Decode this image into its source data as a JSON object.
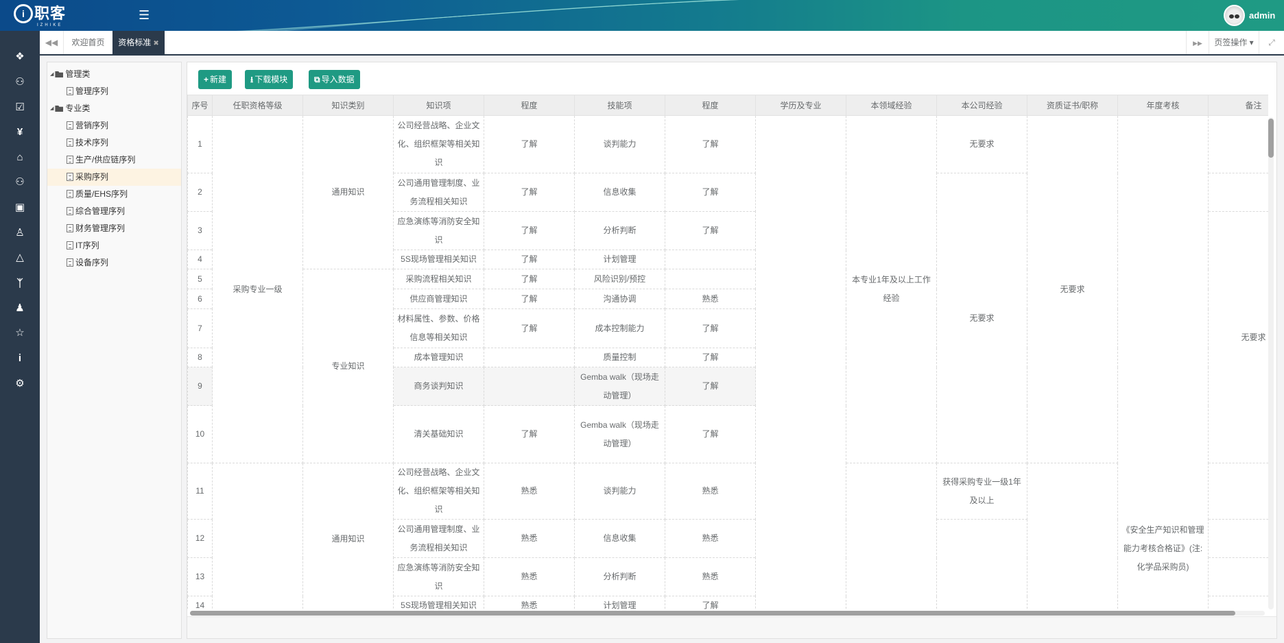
{
  "header": {
    "logo_text": "职客",
    "logo_sub": "IZHIKE",
    "menu_icon": "hamburger-icon",
    "user_name": "admin"
  },
  "sidebar": {
    "icons": [
      "cubes-icon",
      "users-icon",
      "check-square-icon",
      "yen-icon",
      "bank-icon",
      "group-icon",
      "briefcase-icon",
      "user-pin-icon",
      "graduation-cap-icon",
      "person-icon",
      "user-icon",
      "trophy-icon",
      "info-icon",
      "cogs-icon"
    ]
  },
  "tabs": {
    "items": [
      {
        "label": "欢迎首页",
        "active": false
      },
      {
        "label": "资格标准",
        "active": true,
        "close": "✖"
      }
    ],
    "page_ops": "页签操作 ▾"
  },
  "tree": {
    "items": [
      {
        "label": "管理类",
        "type": "group"
      },
      {
        "label": "管理序列",
        "type": "leaf"
      },
      {
        "label": "专业类",
        "type": "group"
      },
      {
        "label": "营销序列",
        "type": "leaf"
      },
      {
        "label": "技术序列",
        "type": "leaf"
      },
      {
        "label": "生产/供应链序列",
        "type": "leaf"
      },
      {
        "label": "采购序列",
        "type": "leaf",
        "selected": true
      },
      {
        "label": "质量/EHS序列",
        "type": "leaf"
      },
      {
        "label": "综合管理序列",
        "type": "leaf"
      },
      {
        "label": "财务管理序列",
        "type": "leaf"
      },
      {
        "label": "IT序列",
        "type": "leaf"
      },
      {
        "label": "设备序列",
        "type": "leaf"
      }
    ]
  },
  "toolbar": {
    "new": "新建",
    "download": "下载模块",
    "import": "导入数据"
  },
  "accent": "#1f9a83",
  "table": {
    "columns": [
      "序号",
      "任职资格等级",
      "知识类别",
      "知识项",
      "程度",
      "技能项",
      "程度",
      "学历及专业",
      "本领域经验",
      "本公司经验",
      "资质证书/职称",
      "年度考核",
      "备注"
    ],
    "rows": [
      {
        "seq": "1",
        "knowledge": "公司经营战略、企业文化、组织框架等相关知识",
        "k_degree": "了解",
        "skill": "谈判能力",
        "s_degree": "了解"
      },
      {
        "seq": "2",
        "knowledge": "公司通用管理制度、业务流程相关知识",
        "k_degree": "了解",
        "skill": "信息收集",
        "s_degree": "了解"
      },
      {
        "seq": "3",
        "knowledge": "应急演练等消防安全知识",
        "k_degree": "了解",
        "skill": "分析判断",
        "s_degree": "了解"
      },
      {
        "seq": "4",
        "knowledge": "5S现场管理相关知识",
        "k_degree": "了解",
        "skill": "计划管理",
        "s_degree": ""
      },
      {
        "seq": "5",
        "knowledge": "采购流程相关知识",
        "k_degree": "了解",
        "skill": "风险识别/预控",
        "s_degree": ""
      },
      {
        "seq": "6",
        "knowledge": "供应商管理知识",
        "k_degree": "了解",
        "skill": "沟通协调",
        "s_degree": "熟悉"
      },
      {
        "seq": "7",
        "knowledge": "材料属性、参数、价格信息等相关知识",
        "k_degree": "了解",
        "skill": "成本控制能力",
        "s_degree": "了解"
      },
      {
        "seq": "8",
        "knowledge": "成本管理知识",
        "k_degree": "",
        "skill": "质量控制",
        "s_degree": "了解"
      },
      {
        "seq": "9",
        "knowledge": "商务谈判知识",
        "k_degree": "",
        "skill": "Gemba walk（现场走动管理）",
        "s_degree": "了解",
        "hover": true
      },
      {
        "seq": "10",
        "knowledge": "清关基础知识",
        "k_degree": "了解",
        "skill": "Gemba walk（现场走动管理）",
        "s_degree": "了解"
      },
      {
        "seq": "11",
        "knowledge": "公司经营战略、企业文化、组织框架等相关知识",
        "k_degree": "熟悉",
        "skill": "谈判能力",
        "s_degree": "熟悉"
      },
      {
        "seq": "12",
        "knowledge": "公司通用管理制度、业务流程相关知识",
        "k_degree": "熟悉",
        "skill": "信息收集",
        "s_degree": "熟悉"
      },
      {
        "seq": "13",
        "knowledge": "应急演练等消防安全知识",
        "k_degree": "熟悉",
        "skill": "分析判断",
        "s_degree": "熟悉"
      },
      {
        "seq": "14",
        "knowledge": "5S现场管理相关知识",
        "k_degree": "熟悉",
        "skill": "计划管理",
        "s_degree": "了解"
      }
    ],
    "merged": {
      "level": [
        {
          "from": 1,
          "to": 10,
          "text": "采购专业一级"
        },
        {
          "from": 11,
          "to": 14,
          "text": ""
        }
      ],
      "category": [
        {
          "from": 1,
          "to": 4,
          "text": "通用知识"
        },
        {
          "from": 5,
          "to": 10,
          "text": "专业知识"
        },
        {
          "from": 11,
          "to": 14,
          "text": "通用知识"
        }
      ],
      "education": [
        {
          "from": 1,
          "to": 14,
          "text": ""
        }
      ],
      "field_exp": [
        {
          "from": 1,
          "to": 10,
          "text": "本专业1年及以上工作经验"
        },
        {
          "from": 11,
          "to": 14,
          "text": ""
        }
      ],
      "company_exp": [
        {
          "from": 1,
          "to": 1,
          "text": "无要求"
        },
        {
          "from": 2,
          "to": 10,
          "text": "无要求"
        },
        {
          "from": 11,
          "to": 11,
          "text": "获得采购专业一级1年及以上"
        },
        {
          "from": 12,
          "to": 14,
          "text": ""
        }
      ],
      "cert": [
        {
          "from": 1,
          "to": 10,
          "text": "无要求"
        },
        {
          "from": 11,
          "to": 14,
          "text": ""
        }
      ],
      "annual": [
        {
          "from": 1,
          "to": 14,
          "text": "《安全生产知识和管理能力考核合格证》(注:化学品采购员)"
        }
      ],
      "remark": [
        {
          "from": 1,
          "to": 1,
          "text": ""
        },
        {
          "from": 2,
          "to": 2,
          "text": ""
        },
        {
          "from": 3,
          "to": 10,
          "text": "无要求"
        },
        {
          "from": 11,
          "to": 11,
          "text": ""
        },
        {
          "from": 12,
          "to": 12,
          "text": ""
        },
        {
          "from": 13,
          "to": 13,
          "text": ""
        },
        {
          "from": 14,
          "to": 14,
          "text": ""
        }
      ]
    }
  }
}
